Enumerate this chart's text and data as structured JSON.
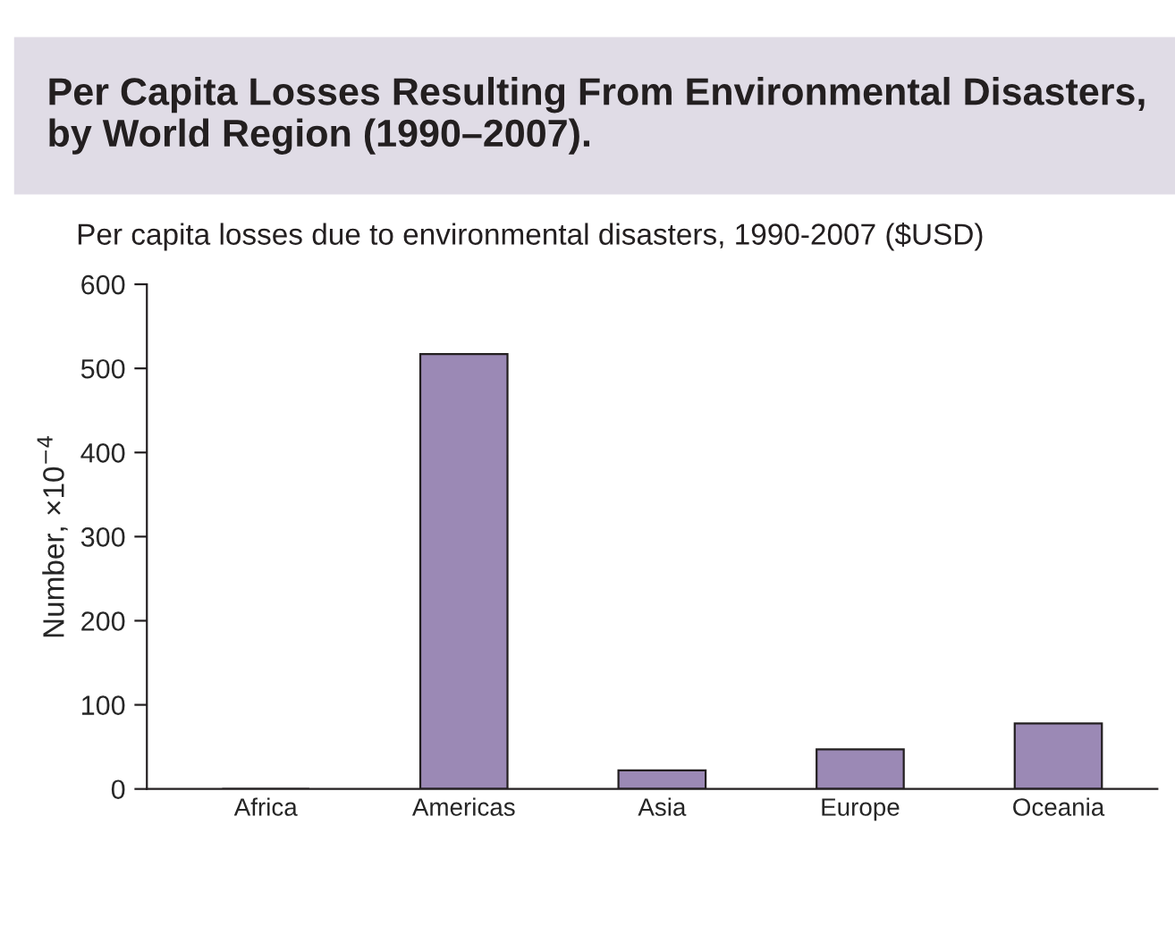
{
  "chart_data": {
    "type": "bar",
    "title": "Per Capita Losses Resulting From Environmental Disasters, by World Region (1990–2007).",
    "subtitle": "Per capita losses due to environmental disasters, 1990-2007 ($USD)",
    "ylabel": "Number, ×10$^{−4}$",
    "categories": [
      "Africa",
      "Americas",
      "Asia",
      "Europe",
      "Oceania"
    ],
    "values": [
      0,
      517,
      22,
      47,
      78
    ],
    "color": "#9b89b5",
    "ylim": [
      0,
      600
    ],
    "yticks": [
      0,
      100,
      200,
      300,
      400,
      500,
      600
    ],
    "grid": false
  }
}
